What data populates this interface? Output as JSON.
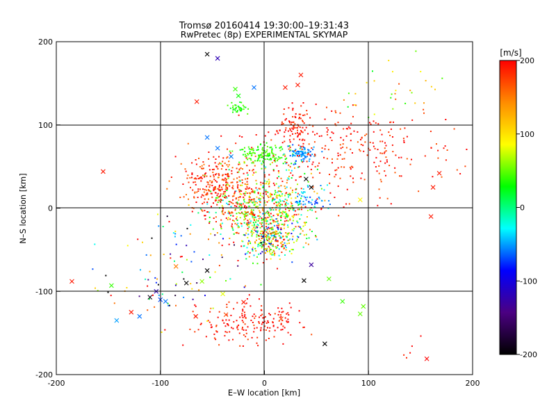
{
  "chart_data": {
    "type": "scatter",
    "title": "Tromsø 20160414 19:30:00–19:31:43",
    "subtitle": "RwPretec (8p) EXPERIMENTAL SKYMAP",
    "xlabel": "E–W location [km]",
    "ylabel": "N–S location [km]",
    "xlim": [
      -200,
      200
    ],
    "ylim": [
      -200,
      200
    ],
    "xticks": [
      -200,
      -100,
      0,
      100,
      200
    ],
    "yticks": [
      -200,
      -100,
      0,
      100,
      200
    ],
    "grid": true,
    "colorbar": {
      "label": "[m/s]",
      "min": -200,
      "max": 200,
      "ticks": [
        200,
        100,
        0,
        -100,
        -200
      ],
      "colors": [
        "#000000",
        "#4b0082",
        "#0000ff",
        "#00ffff",
        "#00ff00",
        "#ffff00",
        "#ff8c00",
        "#ff0000"
      ]
    },
    "clusters": [
      {
        "x": 0,
        "y": 0,
        "sx": 25,
        "sy": 25,
        "n": 650,
        "vmin": -40,
        "vmax": 220
      },
      {
        "x": -45,
        "y": 25,
        "sx": 18,
        "sy": 18,
        "n": 300,
        "vmin": 150,
        "vmax": 220
      },
      {
        "x": 5,
        "y": -35,
        "sx": 14,
        "sy": 12,
        "n": 250,
        "vmin": -120,
        "vmax": 220
      },
      {
        "x": 0,
        "y": 65,
        "sx": 12,
        "sy": 6,
        "n": 140,
        "vmin": 20,
        "vmax": 60
      },
      {
        "x": 35,
        "y": 65,
        "sx": 6,
        "sy": 5,
        "n": 80,
        "vmin": -70,
        "vmax": -40
      },
      {
        "x": 30,
        "y": 100,
        "sx": 8,
        "sy": 12,
        "n": 90,
        "vmin": 170,
        "vmax": 220
      },
      {
        "x": 90,
        "y": 70,
        "sx": 50,
        "sy": 25,
        "n": 260,
        "vmin": 160,
        "vmax": 220
      },
      {
        "x": -15,
        "y": -140,
        "sx": 25,
        "sy": 12,
        "n": 180,
        "vmin": 170,
        "vmax": 220
      },
      {
        "x": -25,
        "y": 120,
        "sx": 4,
        "sy": 4,
        "n": 35,
        "vmin": 20,
        "vmax": 50
      },
      {
        "x": 40,
        "y": 12,
        "sx": 10,
        "sy": 7,
        "n": 50,
        "vmin": -80,
        "vmax": -20
      },
      {
        "x": -70,
        "y": -50,
        "sx": 45,
        "sy": 35,
        "n": 70,
        "vmin": -220,
        "vmax": 220
      },
      {
        "x": 120,
        "y": 145,
        "sx": 25,
        "sy": 20,
        "n": 30,
        "vmin": 20,
        "vmax": 170
      },
      {
        "x": -100,
        "y": -100,
        "sx": 35,
        "sy": 20,
        "n": 30,
        "vmin": -220,
        "vmax": 220
      },
      {
        "x": 150,
        "y": -170,
        "sx": 10,
        "sy": 10,
        "n": 5,
        "vmin": 180,
        "vmax": 220
      }
    ],
    "crosses": [
      {
        "x": -185,
        "y": -88,
        "v": 190
      },
      {
        "x": -155,
        "y": 44,
        "v": 190
      },
      {
        "x": -147,
        "y": -93,
        "v": 40
      },
      {
        "x": -142,
        "y": -135,
        "v": -50
      },
      {
        "x": -128,
        "y": -125,
        "v": 190
      },
      {
        "x": -120,
        "y": -130,
        "v": -60
      },
      {
        "x": -110,
        "y": -107,
        "v": -190
      },
      {
        "x": -104,
        "y": -100,
        "v": -120
      },
      {
        "x": -100,
        "y": -110,
        "v": -70
      },
      {
        "x": -95,
        "y": -112,
        "v": -60
      },
      {
        "x": -85,
        "y": -70,
        "v": 150
      },
      {
        "x": -75,
        "y": -90,
        "v": -200
      },
      {
        "x": -60,
        "y": -88,
        "v": 60
      },
      {
        "x": -55,
        "y": -75,
        "v": -200
      },
      {
        "x": -66,
        "y": -130,
        "v": 190
      },
      {
        "x": -40,
        "y": -103,
        "v": 80
      },
      {
        "x": -37,
        "y": -128,
        "v": 170
      },
      {
        "x": -20,
        "y": -113,
        "v": 190
      },
      {
        "x": 16,
        "y": -133,
        "v": 170
      },
      {
        "x": 45,
        "y": -68,
        "v": -130
      },
      {
        "x": 38,
        "y": -87,
        "v": -200
      },
      {
        "x": 58,
        "y": -163,
        "v": -200
      },
      {
        "x": 62,
        "y": -85,
        "v": 50
      },
      {
        "x": 75,
        "y": -112,
        "v": 40
      },
      {
        "x": 92,
        "y": -127,
        "v": 50
      },
      {
        "x": 95,
        "y": -118,
        "v": 50
      },
      {
        "x": 156,
        "y": -181,
        "v": 200
      },
      {
        "x": 160,
        "y": -10,
        "v": 190
      },
      {
        "x": 162,
        "y": 25,
        "v": 190
      },
      {
        "x": 168,
        "y": 42,
        "v": 190
      },
      {
        "x": 92,
        "y": 10,
        "v": 90
      },
      {
        "x": 45,
        "y": 25,
        "v": -200
      },
      {
        "x": 40,
        "y": 35,
        "v": -200
      },
      {
        "x": -55,
        "y": 85,
        "v": -60
      },
      {
        "x": -45,
        "y": 72,
        "v": -60
      },
      {
        "x": -32,
        "y": 62,
        "v": -60
      },
      {
        "x": -65,
        "y": 128,
        "v": 190
      },
      {
        "x": -28,
        "y": 143,
        "v": 40
      },
      {
        "x": -25,
        "y": 135,
        "v": 30
      },
      {
        "x": -10,
        "y": 145,
        "v": -60
      },
      {
        "x": 20,
        "y": 145,
        "v": 190
      },
      {
        "x": 35,
        "y": 160,
        "v": 190
      },
      {
        "x": 32,
        "y": 148,
        "v": 190
      },
      {
        "x": -45,
        "y": 180,
        "v": -120
      },
      {
        "x": -55,
        "y": 185,
        "v": -200
      }
    ]
  }
}
